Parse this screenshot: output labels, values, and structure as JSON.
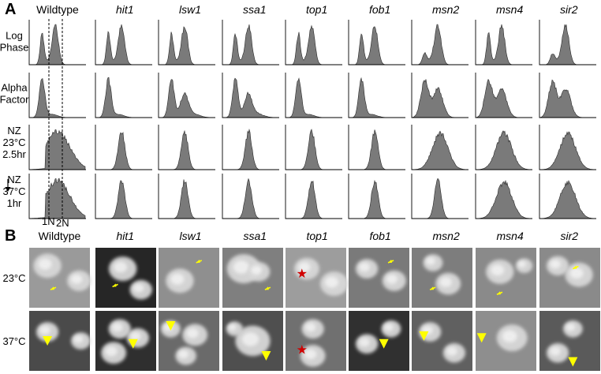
{
  "panelA": {
    "letter": "A",
    "columns": [
      "Wildtype",
      "hit1",
      "lsw1",
      "ssa1",
      "top1",
      "fob1",
      "msn2",
      "msn4",
      "sir2"
    ],
    "rows": [
      {
        "lines": [
          "Log",
          "Phase"
        ]
      },
      {
        "lines": [
          "Alpha",
          "Factor"
        ]
      },
      {
        "lines": [
          "NZ",
          "23°C",
          "2.5hr"
        ]
      },
      {
        "lines": [
          "NZ",
          "37°C",
          "1hr"
        ]
      }
    ],
    "peak_labels": [
      "1N",
      "2N"
    ],
    "histogram_color": "#7a7a7a",
    "dashed_line_color": "#000000"
  },
  "panelB": {
    "letter": "B",
    "columns": [
      "Wildtype",
      "hit1",
      "lsw1",
      "ssa1",
      "top1",
      "fob1",
      "msn2",
      "msn4",
      "sir2"
    ],
    "rows": [
      "23°C",
      "37°C"
    ],
    "marker_color": "#ffff00",
    "star_color": "#d00000"
  }
}
